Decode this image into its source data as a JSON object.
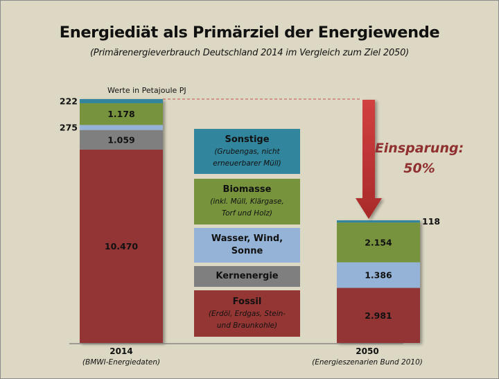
{
  "chart_data": {
    "type": "bar",
    "stacked": true,
    "title": "Energiediät als Primärziel der Energiewende",
    "subtitle": "(Primärenergieverbrauch Deutschland 2014 im Vergleich zum Ziel 2050)",
    "unit_note": "Werte in Petajoule  PJ",
    "xlabel": "",
    "ylabel": "",
    "grid": false,
    "categories": [
      "2014",
      "2050"
    ],
    "category_sources": [
      "(BMWI-Energiedaten)",
      "(Energieszenarien  Bund 2010)"
    ],
    "series": [
      {
        "name": "Fossil",
        "color": "#943634",
        "values": [
          10470,
          2981
        ],
        "labels": [
          "10.470",
          "2.981"
        ]
      },
      {
        "name": "Kernenergie",
        "color": "#7f7f7f",
        "values": [
          1059,
          0
        ],
        "labels": [
          "1.059",
          ""
        ]
      },
      {
        "name": "Wasser, Wind, Sonne",
        "color": "#95b3d7",
        "values": [
          275,
          1386
        ],
        "labels": [
          "275",
          "1.386"
        ]
      },
      {
        "name": "Biomasse",
        "color": "#77933c",
        "values": [
          1178,
          2154
        ],
        "labels": [
          "1.178",
          "2.154"
        ]
      },
      {
        "name": "Sonstige",
        "color": "#31859c",
        "values": [
          222,
          118
        ],
        "labels": [
          "222",
          "118"
        ]
      }
    ],
    "legend": [
      {
        "title": "Sonstige",
        "sub": [
          "(Grubengas, nicht",
          "erneuerbarer Müll)"
        ],
        "color": "#31859c"
      },
      {
        "title": "Biomasse",
        "sub": [
          "(inkl. Müll, Klärgase,",
          "Torf und Holz)"
        ],
        "color": "#77933c"
      },
      {
        "title": "Wasser, Wind,",
        "title2": "Sonne",
        "sub": [],
        "color": "#95b3d7"
      },
      {
        "title": "Kernenergie",
        "sub": [],
        "color": "#7f7f7f"
      },
      {
        "title": "Fossil",
        "sub": [
          "(Erdöl, Erdgas, Stein-",
          "und Braunkohle)"
        ],
        "color": "#943634"
      }
    ],
    "legend_position": "center",
    "annotation": {
      "line1": "Einsparung:",
      "line2": "50%",
      "color": "#8f2f2f"
    },
    "ylim": [
      0,
      13204
    ]
  }
}
